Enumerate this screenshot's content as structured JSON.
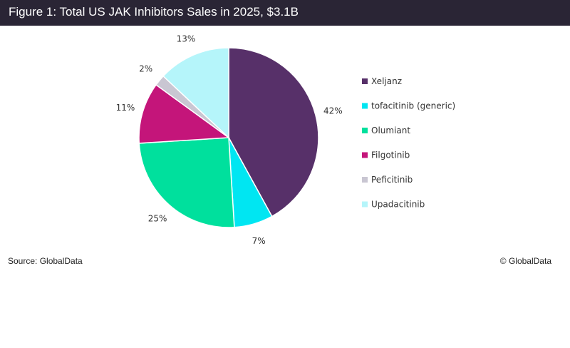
{
  "header": {
    "title": "Figure 1: Total US JAK Inhibitors Sales in 2025, $3.1B"
  },
  "footer": {
    "source": "Source: GlobalData",
    "copyright": "© GlobalData"
  },
  "chart_data": {
    "type": "pie",
    "title": "Figure 1: Total US JAK Inhibitors Sales in 2025, $3.1B",
    "legend_position": "right",
    "slices": [
      {
        "label": "Xeljanz",
        "value": 42,
        "value_label": "42%",
        "color": "#573069"
      },
      {
        "label": "tofacitinib (generic)",
        "value": 7,
        "value_label": "7%",
        "color": "#00e6f2"
      },
      {
        "label": "Olumiant",
        "value": 25,
        "value_label": "25%",
        "color": "#00e09d"
      },
      {
        "label": "Filgotinib",
        "value": 11,
        "value_label": "11%",
        "color": "#c4157a"
      },
      {
        "label": "Peficitinib",
        "value": 2,
        "value_label": "2%",
        "color": "#c9c6d2"
      },
      {
        "label": "Upadacitinib",
        "value": 13,
        "value_label": "13%",
        "color": "#b5f5fa"
      }
    ]
  }
}
